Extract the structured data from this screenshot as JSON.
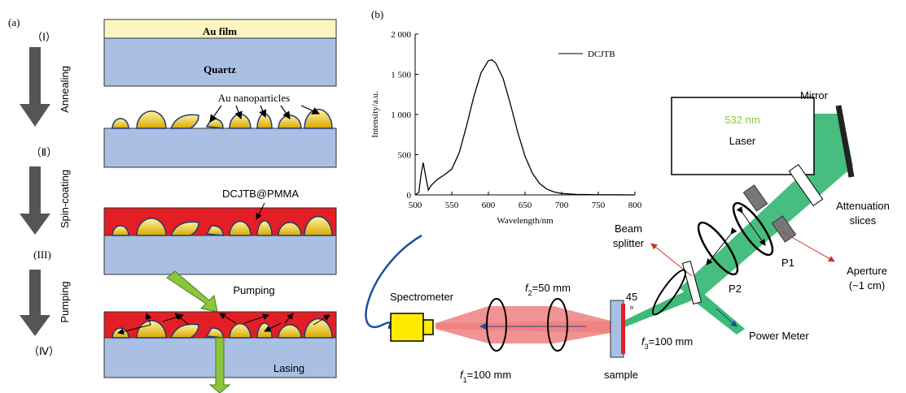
{
  "panel_a": {
    "label": "(a)",
    "steps": [
      "（Ⅰ）",
      "（Ⅱ）",
      "(III)",
      "（Ⅳ）"
    ],
    "processes": [
      "Annealing",
      "Spin-coating",
      "Pumping"
    ],
    "au_film": "Au film",
    "quartz": "Quartz",
    "nanoparticles": "Au nanoparticles",
    "dye_layer": "DCJTB@PMMA",
    "pumping": "Pumping",
    "lasing": "Lasing"
  },
  "chart_data": {
    "type": "line",
    "xlabel": "Wavelength/nm",
    "ylabel": "Intensity/a.u.",
    "x": [
      500,
      505,
      508,
      511,
      514,
      518,
      522,
      530,
      540,
      550,
      560,
      570,
      580,
      590,
      600,
      605,
      610,
      620,
      630,
      640,
      650,
      660,
      670,
      680,
      690,
      700,
      720,
      750,
      800
    ],
    "series": [
      {
        "name": "DCJTB",
        "color": "#000000",
        "values": [
          0,
          30,
          250,
          400,
          250,
          60,
          120,
          190,
          250,
          320,
          520,
          850,
          1220,
          1520,
          1670,
          1680,
          1640,
          1450,
          1130,
          780,
          480,
          270,
          140,
          70,
          35,
          18,
          6,
          2,
          0
        ]
      }
    ],
    "xlim": [
      500,
      800
    ],
    "ylim": [
      0,
      2000
    ],
    "xticks": [
      500,
      550,
      600,
      650,
      700,
      750,
      800
    ],
    "yticks": [
      0,
      500,
      {
        "value": 1000,
        "label": "1 000"
      },
      {
        "value": 1500,
        "label": "1 500"
      },
      {
        "value": 2000,
        "label": "2 000"
      }
    ]
  },
  "panel_b": {
    "label": "(b)",
    "laser_wavelength": "532 nm",
    "laser": "Laser",
    "mirror": "Mirror",
    "attenuation": [
      "Attenuation",
      "slices"
    ],
    "aperture": [
      "Aperture",
      "(~1 cm)"
    ],
    "p1": "P1",
    "p2": "P2",
    "beam_splitter": [
      "Beam",
      "splitter"
    ],
    "angle": [
      "45",
      "°"
    ],
    "f3": [
      "f",
      "3",
      "=100 mm"
    ],
    "power_meter": "Power Meter",
    "sample": "sample",
    "f1": [
      "f",
      "1",
      "=100 mm"
    ],
    "f2": [
      "f",
      "2",
      "=50 mm"
    ],
    "spectrometer": "Spectrometer"
  }
}
